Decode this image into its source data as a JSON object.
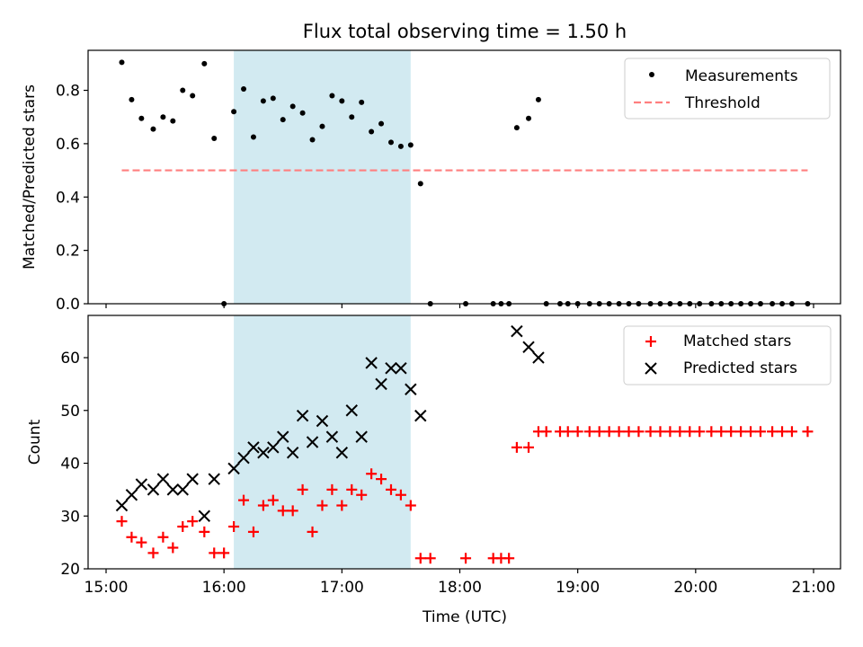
{
  "figure": {
    "title": "Flux total observing time = 1.50 h",
    "xlabel": "Time (UTC)"
  },
  "chart_data": [
    {
      "type": "scatter",
      "panel": "top",
      "ylabel": "Matched/Predicted stars",
      "xlim": [
        "15:00",
        "21:00"
      ],
      "ylim": [
        0,
        0.95
      ],
      "yticks": [
        0.0,
        0.2,
        0.4,
        0.6,
        0.8
      ],
      "yticklabels": [
        "0.0",
        "0.2",
        "0.4",
        "0.6",
        "0.8"
      ],
      "grid": false,
      "legend_position": "upper right",
      "shaded_x_range": [
        "16:05",
        "17:35"
      ],
      "shaded_color": "#add8e6",
      "series": [
        {
          "name": "Measurements",
          "marker": "dot",
          "color": "#000000",
          "points": [
            [
              "15:08",
              0.905
            ],
            [
              "15:13",
              0.765
            ],
            [
              "15:18",
              0.695
            ],
            [
              "15:24",
              0.655
            ],
            [
              "15:29",
              0.7
            ],
            [
              "15:34",
              0.685
            ],
            [
              "15:39",
              0.8
            ],
            [
              "15:44",
              0.78
            ],
            [
              "15:50",
              0.9
            ],
            [
              "15:55",
              0.62
            ],
            [
              "16:00",
              0.0
            ],
            [
              "16:05",
              0.72
            ],
            [
              "16:10",
              0.805
            ],
            [
              "16:15",
              0.625
            ],
            [
              "16:20",
              0.76
            ],
            [
              "16:25",
              0.77
            ],
            [
              "16:30",
              0.69
            ],
            [
              "16:35",
              0.74
            ],
            [
              "16:40",
              0.715
            ],
            [
              "16:45",
              0.615
            ],
            [
              "16:50",
              0.665
            ],
            [
              "16:55",
              0.78
            ],
            [
              "17:00",
              0.76
            ],
            [
              "17:05",
              0.7
            ],
            [
              "17:10",
              0.755
            ],
            [
              "17:15",
              0.645
            ],
            [
              "17:20",
              0.675
            ],
            [
              "17:25",
              0.605
            ],
            [
              "17:30",
              0.59
            ],
            [
              "17:35",
              0.595
            ],
            [
              "17:40",
              0.45
            ],
            [
              "17:45",
              0.0
            ],
            [
              "18:03",
              0.0
            ],
            [
              "18:17",
              0.0
            ],
            [
              "18:21",
              0.0
            ],
            [
              "18:25",
              0.0
            ],
            [
              "18:29",
              0.66
            ],
            [
              "18:35",
              0.695
            ],
            [
              "18:40",
              0.765
            ],
            [
              "18:44",
              0.0
            ],
            [
              "18:51",
              0.0
            ],
            [
              "18:55",
              0.0
            ],
            [
              "19:00",
              0.0
            ],
            [
              "19:06",
              0.0
            ],
            [
              "19:11",
              0.0
            ],
            [
              "19:16",
              0.0
            ],
            [
              "19:21",
              0.0
            ],
            [
              "19:26",
              0.0
            ],
            [
              "19:31",
              0.0
            ],
            [
              "19:37",
              0.0
            ],
            [
              "19:42",
              0.0
            ],
            [
              "19:47",
              0.0
            ],
            [
              "19:52",
              0.0
            ],
            [
              "19:57",
              0.0
            ],
            [
              "20:02",
              0.0
            ],
            [
              "20:08",
              0.0
            ],
            [
              "20:13",
              0.0
            ],
            [
              "20:18",
              0.0
            ],
            [
              "20:23",
              0.0
            ],
            [
              "20:28",
              0.0
            ],
            [
              "20:33",
              0.0
            ],
            [
              "20:39",
              0.0
            ],
            [
              "20:44",
              0.0
            ],
            [
              "20:49",
              0.0
            ],
            [
              "20:57",
              0.0
            ]
          ]
        },
        {
          "name": "Threshold",
          "style": "dashed line",
          "color": "#ff7f7f",
          "points": [
            [
              "15:08",
              0.5
            ],
            [
              "20:57",
              0.5
            ]
          ]
        }
      ]
    },
    {
      "type": "scatter",
      "panel": "bottom",
      "ylabel": "Count",
      "xlim": [
        "15:00",
        "21:00"
      ],
      "ylim": [
        20,
        68
      ],
      "yticks": [
        20,
        30,
        40,
        50,
        60
      ],
      "xticklabels": [
        "15:00",
        "16:00",
        "17:00",
        "18:00",
        "19:00",
        "20:00",
        "21:00"
      ],
      "grid": false,
      "legend_position": "upper right",
      "shaded_x_range": [
        "16:05",
        "17:35"
      ],
      "shaded_color": "#add8e6",
      "series": [
        {
          "name": "Matched stars",
          "marker": "plus",
          "color": "#ff0000",
          "points": [
            [
              "15:08",
              29
            ],
            [
              "15:13",
              26
            ],
            [
              "15:18",
              25
            ],
            [
              "15:24",
              23
            ],
            [
              "15:29",
              26
            ],
            [
              "15:34",
              24
            ],
            [
              "15:39",
              28
            ],
            [
              "15:44",
              29
            ],
            [
              "15:50",
              27
            ],
            [
              "15:55",
              23
            ],
            [
              "16:00",
              23
            ],
            [
              "16:05",
              28
            ],
            [
              "16:10",
              33
            ],
            [
              "16:15",
              27
            ],
            [
              "16:20",
              32
            ],
            [
              "16:25",
              33
            ],
            [
              "16:30",
              31
            ],
            [
              "16:35",
              31
            ],
            [
              "16:40",
              35
            ],
            [
              "16:45",
              27
            ],
            [
              "16:50",
              32
            ],
            [
              "16:55",
              35
            ],
            [
              "17:00",
              32
            ],
            [
              "17:05",
              35
            ],
            [
              "17:10",
              34
            ],
            [
              "17:15",
              38
            ],
            [
              "17:20",
              37
            ],
            [
              "17:25",
              35
            ],
            [
              "17:30",
              34
            ],
            [
              "17:35",
              32
            ],
            [
              "17:40",
              22
            ],
            [
              "17:45",
              22
            ],
            [
              "18:03",
              22
            ],
            [
              "18:17",
              22
            ],
            [
              "18:21",
              22
            ],
            [
              "18:25",
              22
            ],
            [
              "18:29",
              43
            ],
            [
              "18:35",
              43
            ],
            [
              "18:40",
              46
            ],
            [
              "18:44",
              46
            ],
            [
              "18:51",
              46
            ],
            [
              "18:55",
              46
            ],
            [
              "19:00",
              46
            ],
            [
              "19:06",
              46
            ],
            [
              "19:11",
              46
            ],
            [
              "19:16",
              46
            ],
            [
              "19:21",
              46
            ],
            [
              "19:26",
              46
            ],
            [
              "19:31",
              46
            ],
            [
              "19:37",
              46
            ],
            [
              "19:42",
              46
            ],
            [
              "19:47",
              46
            ],
            [
              "19:52",
              46
            ],
            [
              "19:57",
              46
            ],
            [
              "20:02",
              46
            ],
            [
              "20:08",
              46
            ],
            [
              "20:13",
              46
            ],
            [
              "20:18",
              46
            ],
            [
              "20:23",
              46
            ],
            [
              "20:28",
              46
            ],
            [
              "20:33",
              46
            ],
            [
              "20:39",
              46
            ],
            [
              "20:44",
              46
            ],
            [
              "20:49",
              46
            ],
            [
              "20:57",
              46
            ]
          ]
        },
        {
          "name": "Predicted stars",
          "marker": "x",
          "color": "#000000",
          "points": [
            [
              "15:08",
              32
            ],
            [
              "15:13",
              34
            ],
            [
              "15:18",
              36
            ],
            [
              "15:24",
              35
            ],
            [
              "15:29",
              37
            ],
            [
              "15:34",
              35
            ],
            [
              "15:39",
              35
            ],
            [
              "15:44",
              37
            ],
            [
              "15:50",
              30
            ],
            [
              "15:55",
              37
            ],
            [
              "16:05",
              39
            ],
            [
              "16:10",
              41
            ],
            [
              "16:15",
              43
            ],
            [
              "16:20",
              42
            ],
            [
              "16:25",
              43
            ],
            [
              "16:30",
              45
            ],
            [
              "16:35",
              42
            ],
            [
              "16:40",
              49
            ],
            [
              "16:45",
              44
            ],
            [
              "16:50",
              48
            ],
            [
              "16:55",
              45
            ],
            [
              "17:00",
              42
            ],
            [
              "17:05",
              50
            ],
            [
              "17:10",
              45
            ],
            [
              "17:15",
              59
            ],
            [
              "17:20",
              55
            ],
            [
              "17:25",
              58
            ],
            [
              "17:30",
              58
            ],
            [
              "17:35",
              54
            ],
            [
              "17:40",
              49
            ],
            [
              "18:29",
              65
            ],
            [
              "18:35",
              62
            ],
            [
              "18:40",
              60
            ]
          ]
        }
      ]
    }
  ]
}
